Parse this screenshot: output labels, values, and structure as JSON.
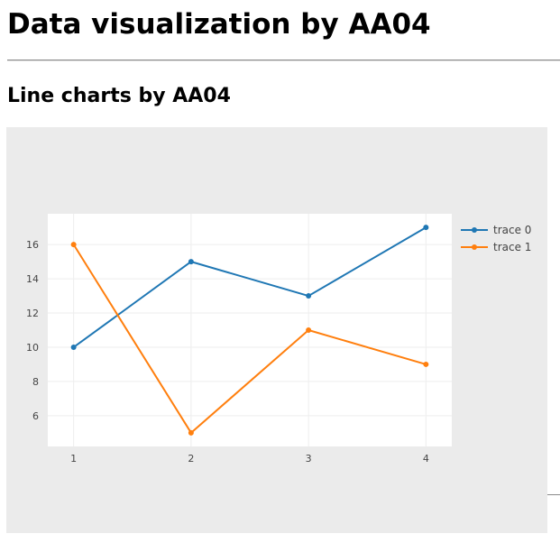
{
  "page": {
    "title": "Data visualization by AA04"
  },
  "section": {
    "title": "Line charts by AA04"
  },
  "chart_data": {
    "type": "line",
    "mode": "lines+markers",
    "xlim": [
      0.78,
      4.22
    ],
    "ylim": [
      4.2,
      17.8
    ],
    "x_ticks": [
      1,
      2,
      3,
      4
    ],
    "y_ticks": [
      6,
      8,
      10,
      12,
      14,
      16
    ],
    "grid": true,
    "legend_position": "right",
    "colors": {
      "panel_background": "#ebebeb",
      "plot_background": "#ffffff",
      "grid": "#eeeeee",
      "axis_text": "#444444"
    },
    "series": [
      {
        "name": "trace 0",
        "color": "#1f77b4",
        "x": [
          1,
          2,
          3,
          4
        ],
        "y": [
          10,
          15,
          13,
          17
        ]
      },
      {
        "name": "trace 1",
        "color": "#ff7f0e",
        "x": [
          1,
          2,
          3,
          4
        ],
        "y": [
          16,
          5,
          11,
          9
        ]
      }
    ]
  }
}
